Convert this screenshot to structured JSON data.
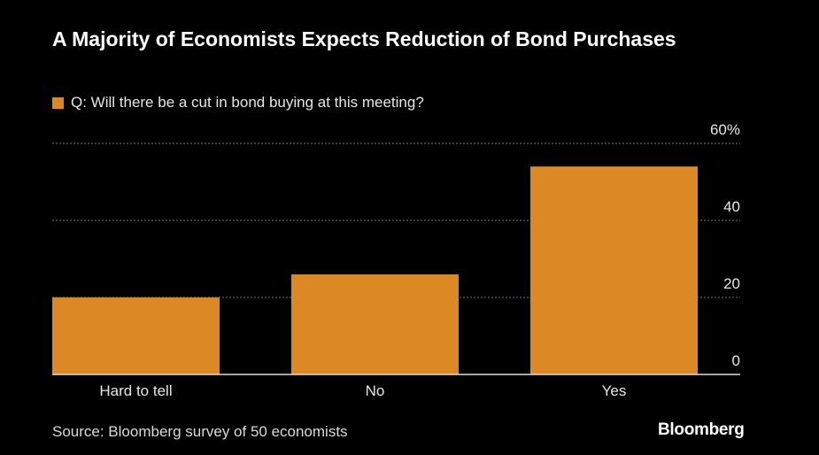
{
  "chart_data": {
    "type": "bar",
    "title": "A Majority of Economists Expects Reduction of Bond Purchases",
    "legend": [
      "Q: Will there be a cut in bond buying at this meeting?"
    ],
    "categories": [
      "Hard to tell",
      "No",
      "Yes"
    ],
    "values": [
      20,
      26,
      54
    ],
    "ylim": [
      0,
      60
    ],
    "yticks": [
      0,
      20,
      40,
      60
    ],
    "ytick_labels": [
      "0",
      "20",
      "40",
      "60%"
    ],
    "yaxis_position": "right",
    "grid": true,
    "xlabel": "",
    "ylabel": "",
    "bar_color": "#db8825"
  },
  "source": "Source: Bloomberg survey of 50 economists",
  "brand": "Bloomberg"
}
